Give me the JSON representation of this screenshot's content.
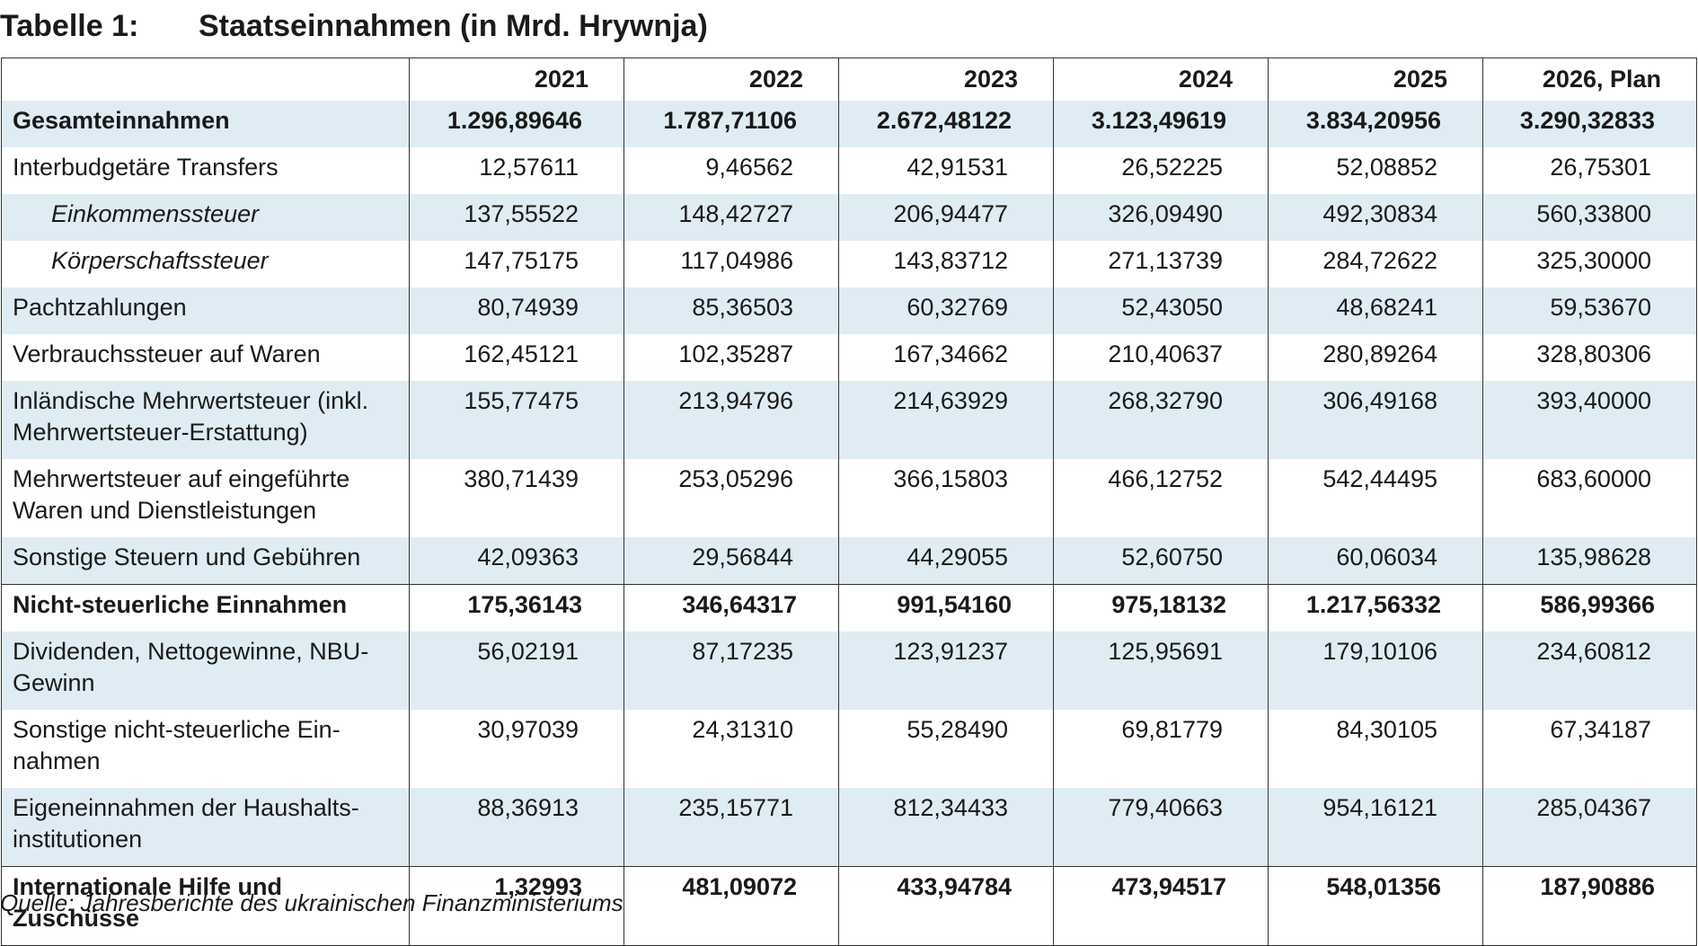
{
  "title": {
    "number": "Tabelle 1:",
    "text": "Staatseinnahmen (in Mrd. Hrywnja)"
  },
  "table": {
    "columns": [
      "",
      "2021",
      "2022",
      "2023",
      "2024",
      "2025",
      "2026, Plan"
    ],
    "rows": [
      {
        "label": "Gesamteinnahmen",
        "values": [
          "1.296,89646",
          "1.787,71106",
          "2.672,48122",
          "3.123,49619",
          "3.834,20956",
          "3.290,32833"
        ]
      },
      {
        "label": "Interbudgetäre Transfers",
        "values": [
          "12,57611",
          "9,46562",
          "42,91531",
          "26,52225",
          "52,08852",
          "26,75301"
        ]
      },
      {
        "label": "Einkommenssteuer",
        "values": [
          "137,55522",
          "148,42727",
          "206,94477",
          "326,09490",
          "492,30834",
          "560,33800"
        ]
      },
      {
        "label": "Körperschaftssteuer",
        "values": [
          "147,75175",
          "117,04986",
          "143,83712",
          "271,13739",
          "284,72622",
          "325,30000"
        ]
      },
      {
        "label": "Pachtzahlungen",
        "values": [
          "80,74939",
          "85,36503",
          "60,32769",
          "52,43050",
          "48,68241",
          "59,53670"
        ]
      },
      {
        "label": "Verbrauchssteuer auf Waren",
        "values": [
          "162,45121",
          "102,35287",
          "167,34662",
          "210,40637",
          "280,89264",
          "328,80306"
        ]
      },
      {
        "label": "Inländische Mehrwertsteuer (inkl. Mehrwertsteuer-Erstattung)",
        "values": [
          "155,77475",
          "213,94796",
          "214,63929",
          "268,32790",
          "306,49168",
          "393,40000"
        ]
      },
      {
        "label": "Mehrwertsteuer auf eingeführte Waren und Dienstleistungen",
        "values": [
          "380,71439",
          "253,05296",
          "366,15803",
          "466,12752",
          "542,44495",
          "683,60000"
        ]
      },
      {
        "label": "Sonstige Steuern und Gebühren",
        "values": [
          "42,09363",
          "29,56844",
          "44,29055",
          "52,60750",
          "60,06034",
          "135,98628"
        ]
      },
      {
        "label": "Nicht-steuerliche Einnahmen",
        "values": [
          "175,36143",
          "346,64317",
          "991,54160",
          "975,18132",
          "1.217,56332",
          "586,99366"
        ]
      },
      {
        "label": "Dividenden, Nettogewinne, NBU-Gewinn",
        "values": [
          "56,02191",
          "87,17235",
          "123,91237",
          "125,95691",
          "179,10106",
          "234,60812"
        ]
      },
      {
        "label": "Sonstige nicht-steuerliche Ein-nahmen",
        "values": [
          "30,97039",
          "24,31310",
          "55,28490",
          "69,81779",
          "84,30105",
          "67,34187"
        ]
      },
      {
        "label": "Eigeneinnahmen der Haushalts-institutionen",
        "values": [
          "88,36913",
          "235,15771",
          "812,34433",
          "779,40663",
          "954,16121",
          "285,04367"
        ]
      },
      {
        "label": "Internationale Hilfe und Zuschüsse",
        "values": [
          "1,32993",
          "481,09072",
          "433,94784",
          "473,94517",
          "548,01356",
          "187,90886"
        ]
      }
    ]
  },
  "source": "Quelle: Jahresberichte des ukrainischen Finanzministeriums"
}
